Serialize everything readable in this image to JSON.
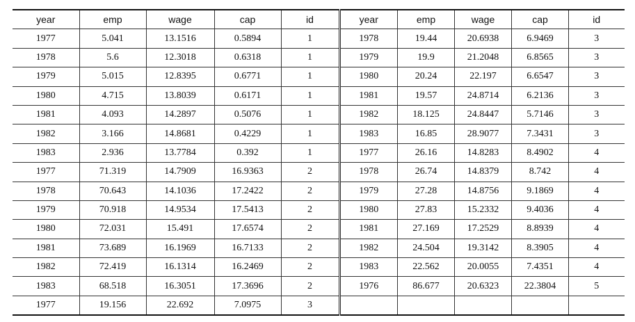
{
  "headers": [
    "year",
    "emp",
    "wage",
    "cap",
    "id"
  ],
  "left_rows": [
    [
      "1977",
      "5.041",
      "13.1516",
      "0.5894",
      "1"
    ],
    [
      "1978",
      "5.6",
      "12.3018",
      "0.6318",
      "1"
    ],
    [
      "1979",
      "5.015",
      "12.8395",
      "0.6771",
      "1"
    ],
    [
      "1980",
      "4.715",
      "13.8039",
      "0.6171",
      "1"
    ],
    [
      "1981",
      "4.093",
      "14.2897",
      "0.5076",
      "1"
    ],
    [
      "1982",
      "3.166",
      "14.8681",
      "0.4229",
      "1"
    ],
    [
      "1983",
      "2.936",
      "13.7784",
      "0.392",
      "1"
    ],
    [
      "1977",
      "71.319",
      "14.7909",
      "16.9363",
      "2"
    ],
    [
      "1978",
      "70.643",
      "14.1036",
      "17.2422",
      "2"
    ],
    [
      "1979",
      "70.918",
      "14.9534",
      "17.5413",
      "2"
    ],
    [
      "1980",
      "72.031",
      "15.491",
      "17.6574",
      "2"
    ],
    [
      "1981",
      "73.689",
      "16.1969",
      "16.7133",
      "2"
    ],
    [
      "1982",
      "72.419",
      "16.1314",
      "16.2469",
      "2"
    ],
    [
      "1983",
      "68.518",
      "16.3051",
      "17.3696",
      "2"
    ],
    [
      "1977",
      "19.156",
      "22.692",
      "7.0975",
      "3"
    ]
  ],
  "right_rows": [
    [
      "1978",
      "19.44",
      "20.6938",
      "6.9469",
      "3"
    ],
    [
      "1979",
      "19.9",
      "21.2048",
      "6.8565",
      "3"
    ],
    [
      "1980",
      "20.24",
      "22.197",
      "6.6547",
      "3"
    ],
    [
      "1981",
      "19.57",
      "24.8714",
      "6.2136",
      "3"
    ],
    [
      "1982",
      "18.125",
      "24.8447",
      "5.7146",
      "3"
    ],
    [
      "1983",
      "16.85",
      "28.9077",
      "7.3431",
      "3"
    ],
    [
      "1977",
      "26.16",
      "14.8283",
      "8.4902",
      "4"
    ],
    [
      "1978",
      "26.74",
      "14.8379",
      "8.742",
      "4"
    ],
    [
      "1979",
      "27.28",
      "14.8756",
      "9.1869",
      "4"
    ],
    [
      "1980",
      "27.83",
      "15.2332",
      "9.4036",
      "4"
    ],
    [
      "1981",
      "27.169",
      "17.2529",
      "8.8939",
      "4"
    ],
    [
      "1982",
      "24.504",
      "19.3142",
      "8.3905",
      "4"
    ],
    [
      "1983",
      "22.562",
      "20.0055",
      "7.4351",
      "4"
    ],
    [
      "1976",
      "86.677",
      "20.6323",
      "22.3804",
      "5"
    ],
    [
      "",
      "",
      "",
      "",
      ""
    ]
  ]
}
